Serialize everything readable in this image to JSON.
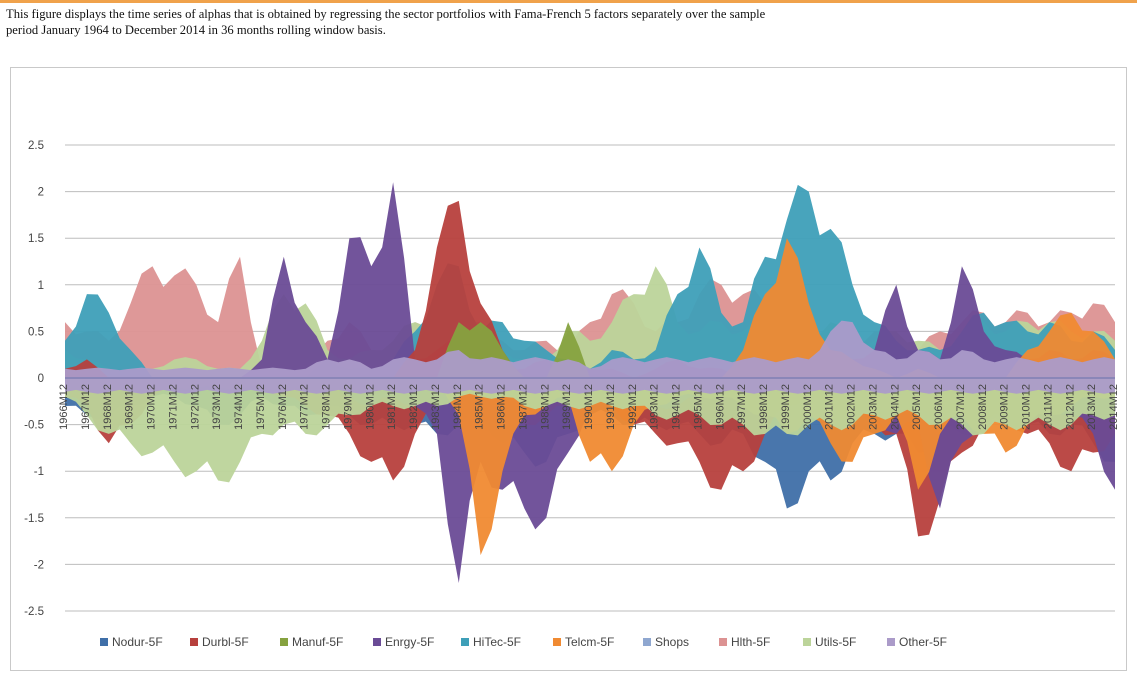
{
  "caption": {
    "line1": "This figure displays the time series of alphas that is obtained by regressing the sector portfolios with Fama-French 5 factors separately over the sample",
    "line2": "period January 1964 to December 2014 in 36 months rolling window basis."
  },
  "colors": {
    "Nodur-5F": "#3f6fa8",
    "Durbl-5F": "#b7403d",
    "Manuf-5F": "#86a23f",
    "Enrgy-5F": "#6a4b96",
    "HiTec-5F": "#3e9fb8",
    "Telcm-5F": "#f08a32",
    "Shops": "#8fa7d0",
    "Hlth-5F": "#dc9292",
    "Utils-5F": "#bcd49a",
    "Other-5F": "#ab9bc9"
  },
  "chart_data": {
    "type": "area",
    "ylim": [
      -2.5,
      2.5
    ],
    "yticks": [
      "2.5",
      "2",
      "1.5",
      "1",
      "0.5",
      "0",
      "-0.5",
      "-1",
      "-1.5",
      "-2",
      "-2.5"
    ],
    "grid": true,
    "legend_position": "bottom",
    "xlabel": "",
    "ylabel": "",
    "categories": [
      "1966M12",
      "1967M12",
      "1968M12",
      "1969M12",
      "1970M12",
      "1971M12",
      "1972M12",
      "1973M12",
      "1974M12",
      "1975M12",
      "1976M12",
      "1977M12",
      "1978M12",
      "1979M12",
      "1980M12",
      "1981M12",
      "1982M12",
      "1983M12",
      "1984M12",
      "1985M12",
      "1986M12",
      "1987M12",
      "1988M12",
      "1989M12",
      "1990M12",
      "1991M12",
      "1992M12",
      "1993M12",
      "1994M12",
      "1995M12",
      "1996M12",
      "1997M12",
      "1998M12",
      "1999M12",
      "2000M12",
      "2001M12",
      "2002M12",
      "2003M12",
      "2004M12",
      "2005M12",
      "2006M12",
      "2007M12",
      "2008M12",
      "2009M12",
      "2010M12",
      "2011M12",
      "2012M12",
      "2013M12",
      "2014M12"
    ],
    "series": [
      {
        "name": "Hlth-5F",
        "values": [
          0.6,
          0.5,
          0.4,
          0.8,
          1.2,
          1.1,
          1.0,
          0.6,
          1.3,
          0.1,
          0.0,
          0.1,
          0.4,
          0.6,
          0.3,
          0.2,
          0.6,
          0.7,
          0.5,
          0.4,
          0.4,
          0.3,
          0.4,
          0.3,
          0.6,
          0.9,
          0.8,
          0.5,
          0.6,
          0.9,
          1.0,
          0.9,
          0.8,
          0.6,
          0.6,
          0.5,
          0.4,
          0.5,
          0.4,
          0.3,
          0.5,
          0.6,
          0.7,
          0.6,
          0.7,
          0.6,
          0.7,
          0.8,
          0.6
        ]
      },
      {
        "name": "Utils-5F",
        "values": [
          0.3,
          0.2,
          0.1,
          0.1,
          0.1,
          0.2,
          0.2,
          0.1,
          0.1,
          0.4,
          0.9,
          0.8,
          0.3,
          0.2,
          0.3,
          0.4,
          0.6,
          0.7,
          0.8,
          0.6,
          0.3,
          0.2,
          0.2,
          0.5,
          0.4,
          0.6,
          0.9,
          1.2,
          0.6,
          0.5,
          0.6,
          0.5,
          0.6,
          0.6,
          0.5,
          0.6,
          0.4,
          0.4,
          0.5,
          0.4,
          0.3,
          0.5,
          0.6,
          0.5,
          0.6,
          0.6,
          0.5,
          0.5,
          0.4
        ]
      },
      {
        "name": "HiTec-5F",
        "values": [
          0.4,
          0.9,
          0.7,
          0.3,
          0.0,
          0.0,
          0.0,
          0.0,
          0.0,
          0.0,
          0.0,
          0.0,
          0.2,
          0.1,
          0.1,
          0.2,
          0.5,
          1.0,
          1.2,
          0.5,
          0.6,
          0.4,
          0.3,
          0.2,
          0.1,
          0.3,
          0.2,
          0.3,
          0.9,
          1.4,
          0.7,
          0.6,
          1.3,
          1.7,
          2.0,
          1.6,
          1.0,
          0.6,
          0.4,
          0.3,
          0.3,
          0.5,
          0.7,
          0.6,
          0.5,
          0.6,
          0.4,
          0.5,
          0.3
        ]
      },
      {
        "name": "Enrgy-5F",
        "values": [
          0.0,
          0.0,
          0.0,
          0.0,
          0.0,
          0.0,
          0.0,
          0.0,
          0.0,
          0.2,
          1.3,
          0.6,
          0.2,
          1.5,
          1.2,
          2.1,
          0.2,
          0.3,
          0.4,
          0.2,
          0.1,
          0.1,
          0.2,
          0.1,
          0.1,
          0.1,
          0.0,
          0.1,
          0.2,
          0.1,
          0.1,
          0.0,
          0.0,
          0.2,
          0.2,
          0.1,
          0.2,
          0.3,
          1.0,
          0.3,
          0.2,
          1.2,
          0.5,
          0.3,
          0.2,
          0.3,
          0.2,
          0.3,
          0.2
        ]
      },
      {
        "name": "Durbl-5F",
        "values": [
          0.1,
          0.2,
          0.0,
          0.0,
          0.0,
          0.0,
          0.0,
          0.0,
          0.0,
          0.0,
          0.0,
          0.0,
          0.0,
          0.0,
          0.0,
          0.0,
          0.3,
          1.4,
          1.9,
          0.8,
          0.3,
          0.0,
          0.0,
          0.0,
          0.0,
          0.0,
          0.0,
          0.0,
          0.0,
          0.0,
          0.0,
          0.0,
          0.0,
          0.0,
          0.0,
          0.0,
          0.0,
          0.0,
          0.0,
          0.0,
          0.0,
          0.0,
          0.0,
          0.0,
          0.0,
          0.0,
          0.0,
          0.0,
          0.0
        ]
      },
      {
        "name": "Telcm-5F",
        "values": [
          0.0,
          0.0,
          0.0,
          0.0,
          0.0,
          0.0,
          0.0,
          0.0,
          0.0,
          0.0,
          0.0,
          0.0,
          0.0,
          0.0,
          0.0,
          0.0,
          0.0,
          0.0,
          0.0,
          0.0,
          0.0,
          0.0,
          0.0,
          0.0,
          0.0,
          0.0,
          0.0,
          0.0,
          0.0,
          0.0,
          0.0,
          0.3,
          0.9,
          1.5,
          0.8,
          0.3,
          0.2,
          0.1,
          0.0,
          0.1,
          0.0,
          0.0,
          0.0,
          0.0,
          0.3,
          0.5,
          0.7,
          0.5,
          0.2
        ]
      },
      {
        "name": "Manuf-5F",
        "values": [
          0.0,
          0.0,
          0.0,
          0.0,
          0.0,
          0.0,
          0.0,
          0.0,
          0.0,
          0.0,
          0.0,
          0.0,
          0.0,
          0.0,
          0.0,
          0.0,
          0.0,
          0.0,
          0.6,
          0.6,
          0.3,
          0.0,
          0.0,
          0.6,
          0.0,
          0.0,
          0.0,
          0.0,
          0.0,
          0.0,
          0.0,
          0.0,
          0.0,
          0.0,
          0.0,
          0.0,
          0.0,
          0.0,
          0.0,
          0.0,
          0.0,
          0.0,
          0.0,
          0.0,
          0.0,
          0.0,
          0.0,
          0.0,
          0.0
        ]
      },
      {
        "name": "Other-5F",
        "values": [
          0.1,
          0.1,
          0.1,
          0.1,
          0.1,
          0.1,
          0.1,
          0.1,
          0.1,
          0.1,
          0.1,
          0.1,
          0.2,
          0.2,
          0.1,
          0.2,
          0.2,
          0.2,
          0.3,
          0.2,
          0.2,
          0.2,
          0.2,
          0.2,
          0.1,
          0.2,
          0.2,
          0.2,
          0.2,
          0.2,
          0.2,
          0.2,
          0.2,
          0.2,
          0.2,
          0.5,
          0.6,
          0.3,
          0.2,
          0.3,
          0.2,
          0.3,
          0.2,
          0.2,
          0.2,
          0.2,
          0.2,
          0.2,
          0.2
        ]
      },
      {
        "name": "Nodur-5F",
        "values": [
          -0.3,
          -0.4,
          -0.4,
          -0.3,
          -0.2,
          -0.2,
          -0.3,
          -0.5,
          -0.4,
          -0.2,
          -0.3,
          -0.4,
          -0.3,
          -0.4,
          -0.5,
          -0.5,
          -0.5,
          -0.6,
          -0.5,
          -0.4,
          -0.7,
          -0.8,
          -0.9,
          -0.6,
          -0.4,
          -0.4,
          -0.5,
          -0.5,
          -0.5,
          -0.6,
          -0.7,
          -0.6,
          -0.9,
          -1.4,
          -1.0,
          -1.1,
          -0.7,
          -0.6,
          -0.6,
          -0.8,
          -0.6,
          -0.6,
          -0.5,
          -0.5,
          -0.5,
          -0.6,
          -0.5,
          -0.7,
          -0.9
        ]
      },
      {
        "name": "Durbl-5F (negative)",
        "values": [
          -0.2,
          -0.3,
          -0.7,
          -0.5,
          -0.2,
          -0.1,
          -0.1,
          -0.1,
          -0.1,
          -0.1,
          -0.2,
          -0.3,
          -0.4,
          -0.6,
          -0.9,
          -1.1,
          -0.6,
          -0.3,
          -0.2,
          -0.2,
          -0.3,
          -0.5,
          -0.4,
          -0.3,
          -0.3,
          -0.3,
          -0.5,
          -0.6,
          -0.7,
          -0.9,
          -1.2,
          -1.0,
          -0.6,
          -0.3,
          -0.2,
          -0.3,
          -0.4,
          -0.5,
          -0.6,
          -1.7,
          -1.3,
          -0.8,
          -0.5,
          -0.4,
          -0.6,
          -0.7,
          -1.0,
          -0.8,
          -0.6
        ]
      },
      {
        "name": "Enrgy-5F (negative)",
        "values": [
          -0.1,
          -0.1,
          -0.1,
          -0.1,
          -0.1,
          -0.1,
          -0.1,
          -0.1,
          -0.1,
          -0.1,
          -0.1,
          -0.1,
          -0.1,
          -0.2,
          -0.3,
          -0.2,
          -0.3,
          -0.6,
          -2.2,
          -0.9,
          -1.2,
          -1.4,
          -1.5,
          -0.8,
          -0.3,
          -0.2,
          -0.2,
          -0.3,
          -0.3,
          -0.2,
          -0.2,
          -0.2,
          -0.3,
          -0.3,
          -0.2,
          -0.3,
          -0.3,
          -0.4,
          -0.6,
          -0.5,
          -1.4,
          -0.7,
          -0.4,
          -0.3,
          -0.3,
          -0.3,
          -0.4,
          -0.6,
          -1.2
        ]
      },
      {
        "name": "Telcm-5F (negative)",
        "values": [
          0.0,
          0.0,
          0.0,
          0.0,
          0.0,
          0.0,
          0.0,
          0.0,
          0.0,
          0.0,
          0.0,
          0.0,
          0.0,
          0.0,
          0.0,
          0.0,
          0.0,
          0.0,
          -0.4,
          -1.9,
          -1.0,
          -0.4,
          -0.3,
          -0.2,
          -0.9,
          -1.0,
          -0.5,
          -0.3,
          -0.2,
          -0.2,
          -0.2,
          -0.3,
          -0.4,
          -0.6,
          -0.4,
          -0.7,
          -0.9,
          -0.6,
          -0.4,
          -1.2,
          -0.6,
          -0.4,
          -0.6,
          -0.8,
          -0.5,
          -0.4,
          -0.3,
          -0.2,
          -0.2
        ]
      },
      {
        "name": "Utils-5F (negative)",
        "values": [
          -0.2,
          -0.4,
          -0.6,
          -0.7,
          -0.8,
          -0.9,
          -1.0,
          -1.1,
          -0.9,
          -0.6,
          -0.5,
          -0.6,
          -0.5,
          -0.4,
          -0.3,
          -0.3,
          -0.3,
          -0.3,
          -0.2,
          -0.2,
          -0.2,
          -0.3,
          -0.3,
          -0.3,
          -0.3,
          -0.3,
          -0.3,
          -0.4,
          -0.4,
          -0.4,
          -0.5,
          -0.5,
          -0.6,
          -0.6,
          -0.5,
          -0.5,
          -0.5,
          -0.4,
          -0.4,
          -0.4,
          -0.5,
          -0.5,
          -0.6,
          -0.5,
          -0.5,
          -0.5,
          -0.5,
          -0.4,
          -0.4
        ]
      },
      {
        "name": "Other-5F (negative)",
        "values": [
          -0.15,
          -0.15,
          -0.15,
          -0.15,
          -0.15,
          -0.15,
          -0.15,
          -0.15,
          -0.15,
          -0.15,
          -0.15,
          -0.15,
          -0.15,
          -0.15,
          -0.15,
          -0.15,
          -0.15,
          -0.15,
          -0.15,
          -0.15,
          -0.15,
          -0.15,
          -0.15,
          -0.15,
          -0.15,
          -0.15,
          -0.15,
          -0.15,
          -0.15,
          -0.15,
          -0.15,
          -0.15,
          -0.15,
          -0.15,
          -0.15,
          -0.15,
          -0.15,
          -0.15,
          -0.15,
          -0.15,
          -0.15,
          -0.15,
          -0.15,
          -0.15,
          -0.15,
          -0.15,
          -0.15,
          -0.15,
          -0.15
        ]
      }
    ],
    "legend": [
      "Nodur-5F",
      "Durbl-5F",
      "Manuf-5F",
      "Enrgy-5F",
      "HiTec-5F",
      "Telcm-5F",
      "Shops",
      "Hlth-5F",
      "Utils-5F",
      "Other-5F"
    ]
  }
}
